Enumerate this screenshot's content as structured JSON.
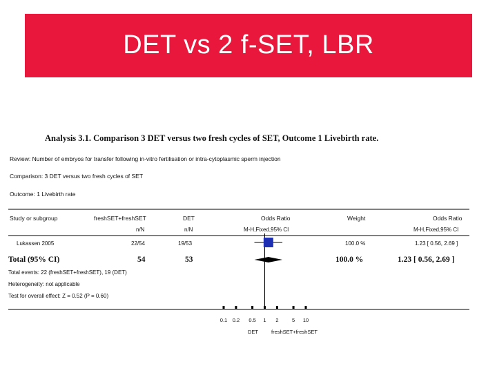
{
  "slide": {
    "title": "DET vs 2 f-SET, LBR",
    "band_color": "#e8173b"
  },
  "analysis": {
    "heading": "Analysis 3.1.    Comparison 3 DET versus two fresh cycles of SET, Outcome 1 Livebirth rate.",
    "review": "Review:    Number of embryos for transfer following in-vitro fertilisation or intra-cytoplasmic sperm injection",
    "comparison": "Comparison:    3 DET versus two fresh cycles of SET",
    "outcome": "Outcome:    1 Livebirth rate"
  },
  "table": {
    "headers": {
      "study": "Study or subgroup",
      "group1": "freshSET+freshSET",
      "group2": "DET",
      "effect": "Odds Ratio",
      "weight": "Weight",
      "effect_ci": "Odds Ratio"
    },
    "subheaders": {
      "group1": "n/N",
      "group2": "n/N",
      "effect": "M-H,Fixed,95% CI",
      "effect_ci": "M-H,Fixed,95% CI"
    },
    "study_row": {
      "name": "Lukassen 2005",
      "group1": "22/54",
      "group2": "19/53",
      "weight": "100.0 %",
      "or_text": "1.23 [ 0.56, 2.69 ]"
    },
    "total_row": {
      "name": "Total (95% CI)",
      "group1": "54",
      "group2": "53",
      "weight": "100.0 %",
      "or_text": "1.23 [ 0.56, 2.69 ]"
    },
    "footnotes": {
      "events": "Total events: 22 (freshSET+freshSET), 19 (DET)",
      "heterogeneity": "Heterogeneity: not applicable",
      "overall_effect": "Test for overall effect: Z = 0.52 (P = 0.60)"
    }
  },
  "axis": {
    "tick_labels": [
      "0.1",
      "0.2",
      "0.5",
      "1",
      "2",
      "5",
      "10"
    ],
    "favours_left": "DET",
    "favours_right": "freshSET+freshSET"
  },
  "chart_data": {
    "type": "forest",
    "x_scale": "log",
    "xlim": [
      0.1,
      10
    ],
    "x_ticks": [
      0.1,
      0.2,
      0.5,
      1,
      2,
      5,
      10
    ],
    "studies": [
      {
        "name": "Lukassen 2005",
        "or": 1.23,
        "ci_low": 0.56,
        "ci_high": 2.69,
        "weight_pct": 100.0
      }
    ],
    "pooled": {
      "name": "Total (95% CI)",
      "or": 1.23,
      "ci_low": 0.56,
      "ci_high": 2.69
    },
    "marker_color": "#1f2fb4"
  }
}
